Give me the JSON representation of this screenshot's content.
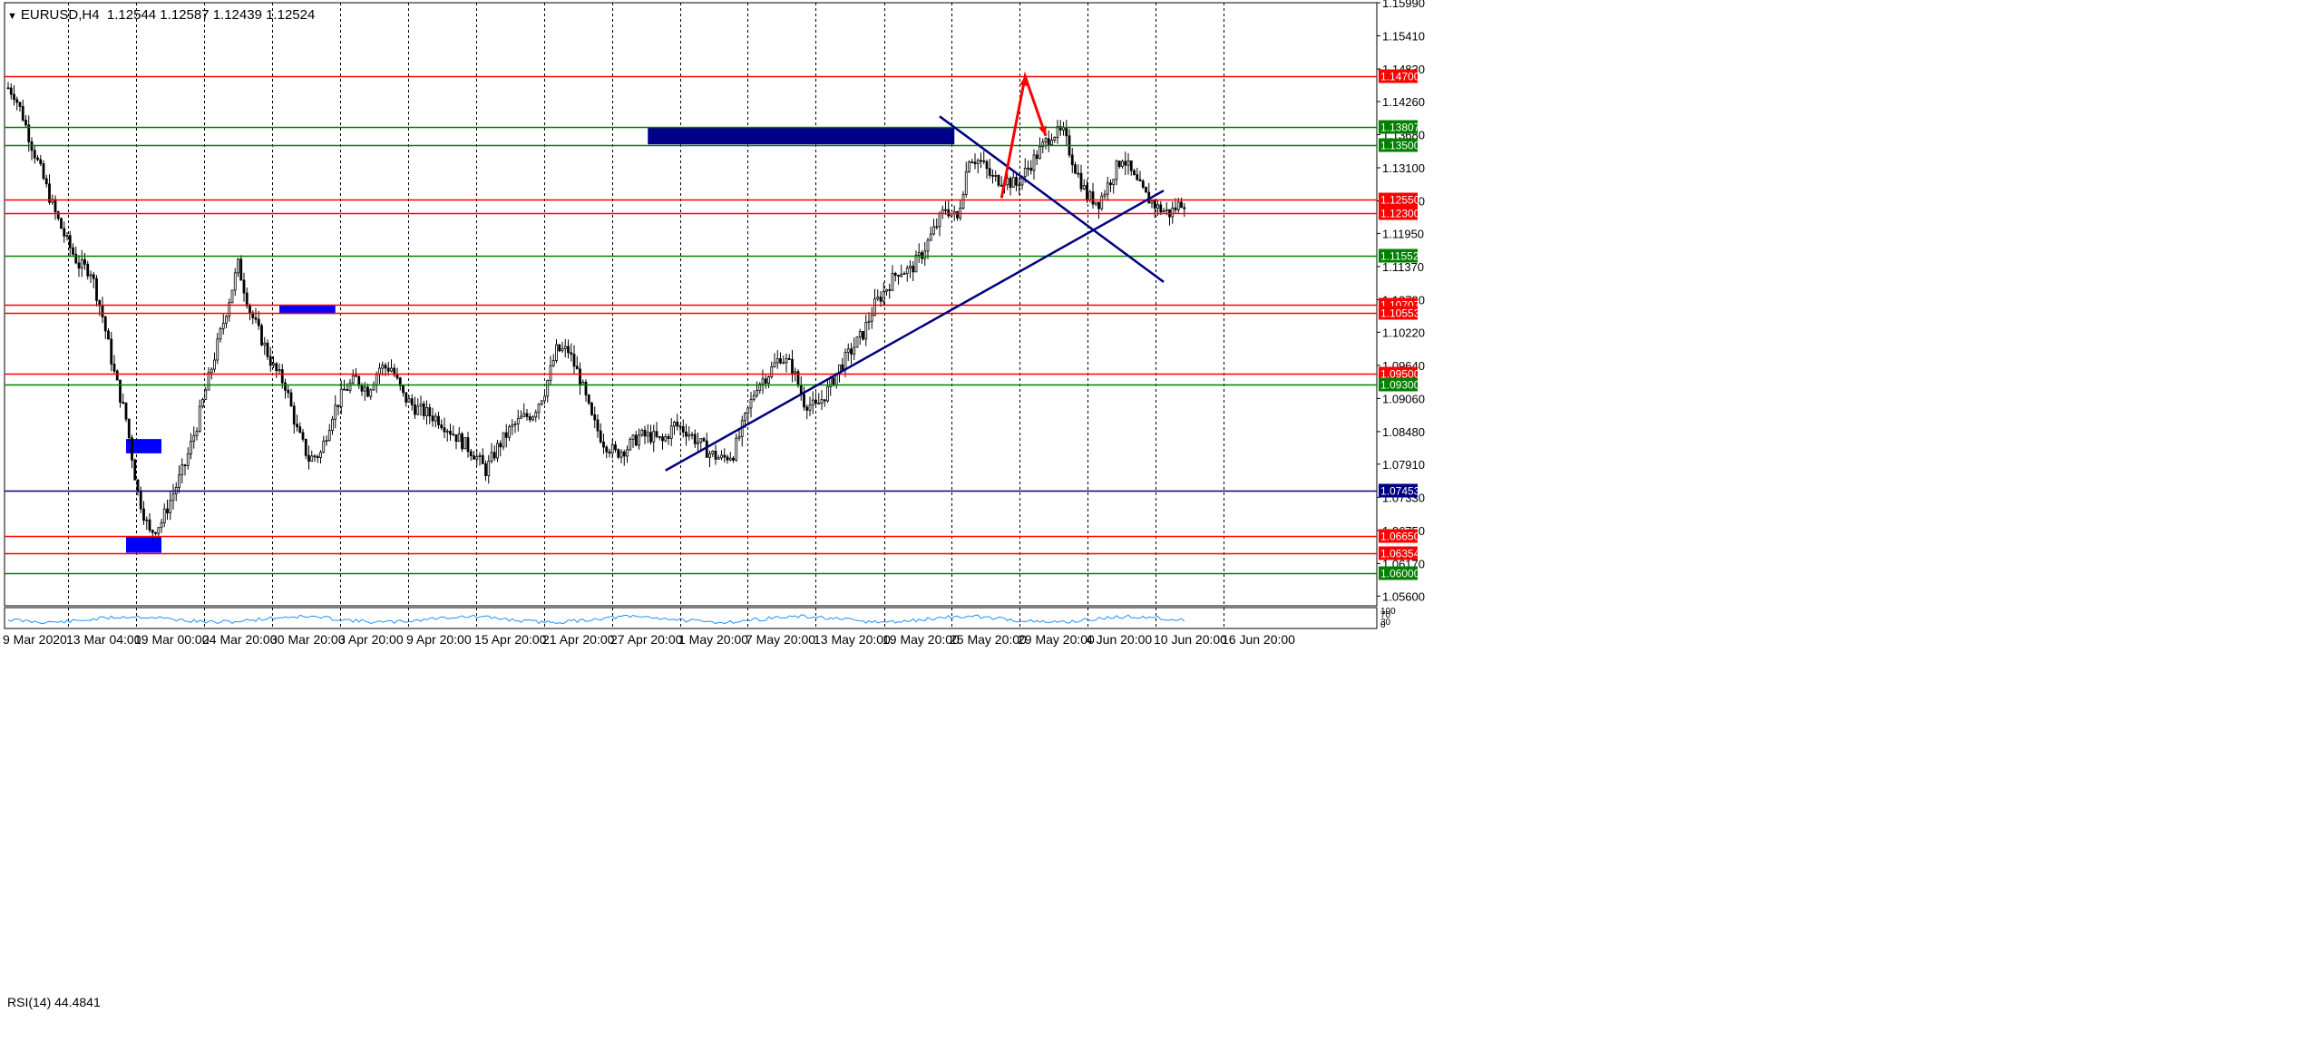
{
  "header": {
    "symbol_tf": "EURUSD,H4",
    "ohlc": "1.12544 1.12587 1.12439 1.12524"
  },
  "rsi": {
    "label": "RSI(14) 44.4841",
    "scale_labels": [
      "100",
      "70",
      "30",
      "0"
    ]
  },
  "chart_data": {
    "type": "candlestick",
    "symbol": "EURUSD",
    "timeframe": "H4",
    "ylim": [
      1.0543,
      1.1599
    ],
    "y_tick_labels": [
      "1.15990",
      "1.15410",
      "1.14830",
      "1.14260",
      "1.13680",
      "1.13100",
      "1.12520",
      "1.11950",
      "1.11370",
      "1.10790",
      "1.10220",
      "1.09640",
      "1.09060",
      "1.08480",
      "1.07910",
      "1.07330",
      "1.06750",
      "1.06170",
      "1.05600"
    ],
    "x_tick_labels": [
      "9 Mar 2020",
      "13 Mar 04:00",
      "19 Mar 00:00",
      "24 Mar 20:00",
      "30 Mar 20:00",
      "3 Apr 20:00",
      "9 Apr 20:00",
      "15 Apr 20:00",
      "21 Apr 20:00",
      "27 Apr 20:00",
      "1 May 20:00",
      "7 May 20:00",
      "13 May 20:00",
      "19 May 20:00",
      "25 May 20:00",
      "29 May 20:00",
      "4 Jun 20:00",
      "10 Jun 20:00",
      "16 Jun 20:00"
    ],
    "grid": true,
    "price_path": [
      [
        0,
        1.145
      ],
      [
        2,
        1.144
      ],
      [
        5,
        1.14
      ],
      [
        8,
        1.135
      ],
      [
        12,
        1.129
      ],
      [
        16,
        1.123
      ],
      [
        20,
        1.118
      ],
      [
        24,
        1.114
      ],
      [
        28,
        1.113
      ],
      [
        32,
        1.105
      ],
      [
        36,
        1.095
      ],
      [
        40,
        1.087
      ],
      [
        44,
        1.074
      ],
      [
        48,
        1.067
      ],
      [
        52,
        1.069
      ],
      [
        56,
        1.074
      ],
      [
        60,
        1.079
      ],
      [
        64,
        1.086
      ],
      [
        68,
        1.094
      ],
      [
        72,
        1.102
      ],
      [
        76,
        1.11
      ],
      [
        78,
        1.114
      ],
      [
        82,
        1.106
      ],
      [
        86,
        1.101
      ],
      [
        90,
        1.096
      ],
      [
        94,
        1.093
      ],
      [
        98,
        1.085
      ],
      [
        102,
        1.08
      ],
      [
        106,
        1.081
      ],
      [
        110,
        1.088
      ],
      [
        114,
        1.092
      ],
      [
        118,
        1.094
      ],
      [
        122,
        1.092
      ],
      [
        126,
        1.096
      ],
      [
        130,
        1.096
      ],
      [
        134,
        1.091
      ],
      [
        138,
        1.089
      ],
      [
        142,
        1.088
      ],
      [
        146,
        1.087
      ],
      [
        150,
        1.085
      ],
      [
        154,
        1.083
      ],
      [
        158,
        1.081
      ],
      [
        162,
        1.078
      ],
      [
        166,
        1.082
      ],
      [
        170,
        1.085
      ],
      [
        174,
        1.087
      ],
      [
        178,
        1.088
      ],
      [
        182,
        1.092
      ],
      [
        186,
        1.099
      ],
      [
        190,
        1.099
      ],
      [
        194,
        1.094
      ],
      [
        198,
        1.087
      ],
      [
        202,
        1.083
      ],
      [
        206,
        1.081
      ],
      [
        210,
        1.082
      ],
      [
        214,
        1.084
      ],
      [
        218,
        1.084
      ],
      [
        222,
        1.083
      ],
      [
        226,
        1.086
      ],
      [
        230,
        1.085
      ],
      [
        234,
        1.083
      ],
      [
        238,
        1.081
      ],
      [
        242,
        1.08
      ],
      [
        246,
        1.081
      ],
      [
        250,
        1.087
      ],
      [
        254,
        1.093
      ],
      [
        258,
        1.095
      ],
      [
        262,
        1.098
      ],
      [
        266,
        1.096
      ],
      [
        270,
        1.09
      ],
      [
        274,
        1.089
      ],
      [
        278,
        1.092
      ],
      [
        282,
        1.096
      ],
      [
        286,
        1.099
      ],
      [
        290,
        1.102
      ],
      [
        294,
        1.107
      ],
      [
        298,
        1.11
      ],
      [
        302,
        1.113
      ],
      [
        306,
        1.113
      ],
      [
        310,
        1.116
      ],
      [
        314,
        1.12
      ],
      [
        318,
        1.124
      ],
      [
        322,
        1.122
      ],
      [
        326,
        1.133
      ],
      [
        330,
        1.132
      ],
      [
        334,
        1.129
      ],
      [
        338,
        1.129
      ],
      [
        342,
        1.128
      ],
      [
        346,
        1.131
      ],
      [
        350,
        1.134
      ],
      [
        354,
        1.137
      ],
      [
        358,
        1.137
      ],
      [
        362,
        1.131
      ],
      [
        366,
        1.126
      ],
      [
        370,
        1.125
      ],
      [
        374,
        1.129
      ],
      [
        378,
        1.133
      ],
      [
        382,
        1.129
      ],
      [
        386,
        1.126
      ],
      [
        390,
        1.124
      ],
      [
        394,
        1.123
      ],
      [
        398,
        1.125
      ]
    ],
    "levels": [
      {
        "price": 1.147,
        "label": "1.14700",
        "color": "#ff0000"
      },
      {
        "price": 1.13807,
        "label": "1.13807",
        "color": "#008000"
      },
      {
        "price": 1.135,
        "label": "1.13500",
        "color": "#008000"
      },
      {
        "price": 1.1255,
        "label": "1.12550",
        "color": "#ff0000"
      },
      {
        "price": 1.123,
        "label": "1.12300",
        "color": "#ff0000"
      },
      {
        "price": 1.11552,
        "label": "1.11552",
        "color": "#008000"
      },
      {
        "price": 1.10707,
        "label": "1.10707",
        "color": "#ff0000"
      },
      {
        "price": 1.10553,
        "label": "1.10553",
        "color": "#ff0000"
      },
      {
        "price": 1.095,
        "label": "1.09500",
        "color": "#ff0000"
      },
      {
        "price": 1.093,
        "label": "1.09300",
        "color": "#008000"
      },
      {
        "price": 1.07453,
        "label": "1.07453",
        "color": "#000080"
      },
      {
        "price": 1.0665,
        "label": "1.06650",
        "color": "#ff0000"
      },
      {
        "price": 1.06354,
        "label": "1.06354",
        "color": "#ff0000"
      },
      {
        "price": 1.06,
        "label": "1.06000",
        "color": "#008000"
      }
    ],
    "zones": [
      {
        "x0": 217,
        "x1": 321,
        "y0": 1.1351,
        "y1": 1.1381,
        "color": "#00008b"
      },
      {
        "x0": 92,
        "x1": 111,
        "y0": 1.1054,
        "y1": 1.107,
        "color": "#0000ff"
      },
      {
        "x0": 40,
        "x1": 52,
        "y0": 1.081,
        "y1": 1.0835,
        "color": "#0000ff"
      },
      {
        "x0": 40,
        "x1": 52,
        "y0": 1.0636,
        "y1": 1.0665,
        "color": "#0000ff"
      }
    ],
    "trendlines": [
      {
        "x0": 223,
        "y0": 1.078,
        "x1": 392,
        "y1": 1.127,
        "color": "#000080"
      },
      {
        "x0": 316,
        "y0": 1.14,
        "x1": 392,
        "y1": 1.111,
        "color": "#000080"
      }
    ],
    "arrow": {
      "points": [
        [
          337,
          1.1257
        ],
        [
          345,
          1.147
        ],
        [
          352,
          1.1366
        ]
      ],
      "color": "#ff0000"
    },
    "colors": {
      "grid": "#000000",
      "candle": "#000000",
      "rsi_line": "#1e90ff"
    }
  }
}
